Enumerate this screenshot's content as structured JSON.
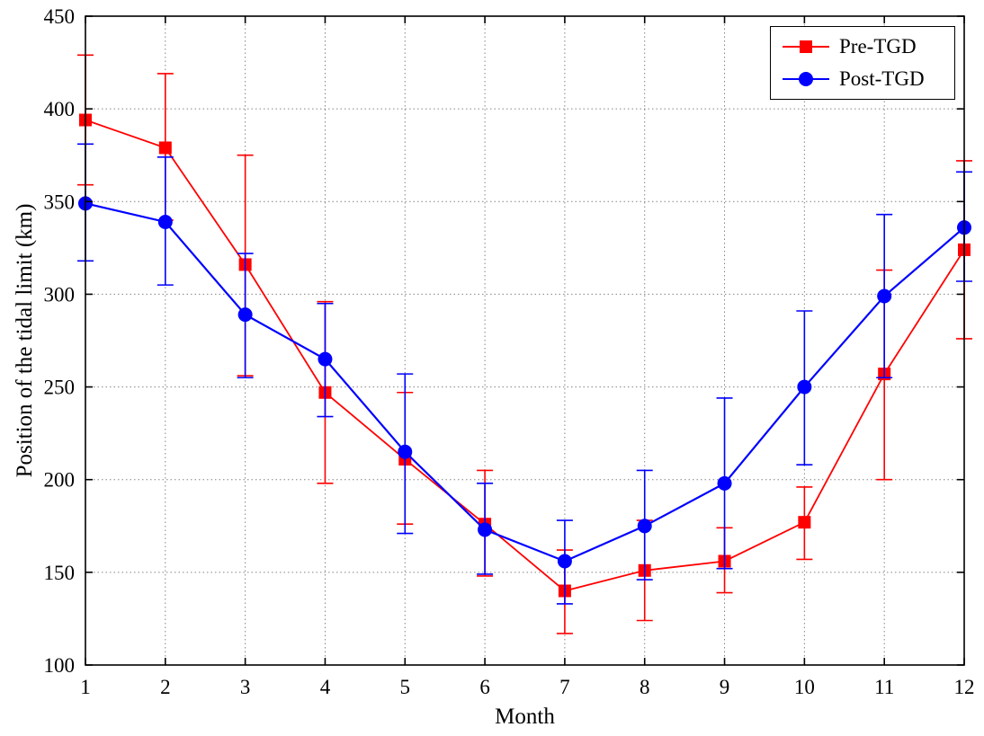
{
  "figure": {
    "background": "#ffffff"
  },
  "chart_data": {
    "type": "line",
    "title": "",
    "xlabel": "Month",
    "ylabel": "Position of the tidal limit (km)",
    "x": [
      1,
      2,
      3,
      4,
      5,
      6,
      7,
      8,
      9,
      10,
      11,
      12
    ],
    "xlim": [
      1,
      12
    ],
    "ylim": [
      100,
      450
    ],
    "ytick_step": 50,
    "yticks": [
      100,
      150,
      200,
      250,
      300,
      350,
      400,
      450
    ],
    "grid": "dotted",
    "legend_position": "top-right",
    "error_bar_note": "upper and lower are absolute y-values of the error bar ends",
    "series": [
      {
        "name": "Pre-TGD",
        "color": "#FF0000",
        "marker": "square",
        "values": [
          394,
          379,
          316,
          247,
          211,
          176,
          140,
          151,
          156,
          177,
          257,
          324
        ],
        "upper": [
          429,
          419,
          375,
          296,
          247,
          205,
          162,
          178,
          174,
          196,
          313,
          372
        ],
        "lower": [
          359,
          340,
          256,
          198,
          176,
          148,
          117,
          124,
          139,
          157,
          200,
          276
        ]
      },
      {
        "name": "Post-TGD",
        "color": "#0000FF",
        "marker": "circle",
        "values": [
          349,
          339,
          289,
          265,
          215,
          173,
          156,
          175,
          198,
          250,
          299,
          336
        ],
        "upper": [
          381,
          374,
          322,
          295,
          257,
          198,
          178,
          205,
          244,
          291,
          343,
          366
        ],
        "lower": [
          318,
          305,
          255,
          234,
          171,
          149,
          133,
          146,
          152,
          208,
          255,
          307
        ]
      }
    ]
  }
}
